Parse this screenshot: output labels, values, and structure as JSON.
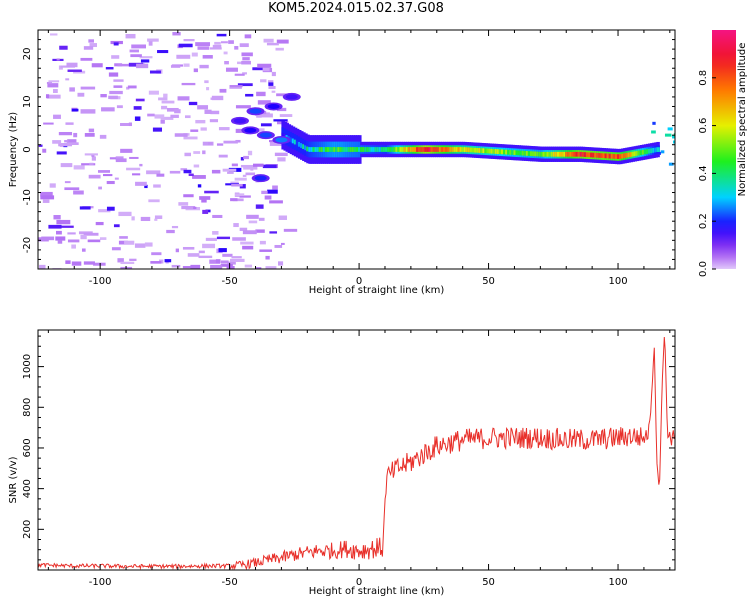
{
  "figure": {
    "title": "KOM5.2024.015.02.37.G08"
  },
  "chart_data": [
    {
      "type": "heatmap",
      "title": "KOM5.2024.015.02.37.G08",
      "xlabel": "Height of straight line (km)",
      "ylabel": "Frequency (Hz)",
      "xlim": [
        -124,
        122
      ],
      "ylim": [
        -25,
        25
      ],
      "xticks": [
        -100,
        -50,
        0,
        50,
        100
      ],
      "yticks": [
        -20,
        -10,
        0,
        10,
        20
      ],
      "colorbar": {
        "label": "Normalized spectral amplitude",
        "range": [
          0,
          1
        ],
        "ticks": [
          "0.0",
          "0.2",
          "0.4",
          "0.6",
          "0.8"
        ],
        "colormap": "rainbow (white to violet, blue, cyan, green, yellow, orange, red, magenta)"
      },
      "description_points": [
        {
          "x": -110,
          "y": 22,
          "value": 0.15
        },
        {
          "x": -95,
          "y": 16,
          "value": 0.15
        },
        {
          "x": -80,
          "y": 9,
          "value": 0.1
        },
        {
          "x": -60,
          "y": -3,
          "value": 0.1
        },
        {
          "x": -45,
          "y": 4,
          "value": 0.2
        },
        {
          "x": -40,
          "y": 7,
          "value": 0.25
        },
        {
          "x": -38,
          "y": -6,
          "value": 0.2
        },
        {
          "x": -30,
          "y": 3,
          "value": 0.2
        },
        {
          "x": -20,
          "y": 0,
          "value": 0.35
        },
        {
          "x": -10,
          "y": 0,
          "value": 0.45
        },
        {
          "x": 0,
          "y": 0,
          "value": 0.4
        },
        {
          "x": 10,
          "y": 0,
          "value": 0.35
        },
        {
          "x": 25,
          "y": 0,
          "value": 0.9
        },
        {
          "x": 40,
          "y": 0,
          "value": 0.6
        },
        {
          "x": 55,
          "y": -0.5,
          "value": 0.5
        },
        {
          "x": 70,
          "y": -1,
          "value": 0.45
        },
        {
          "x": 85,
          "y": -1,
          "value": 0.85
        },
        {
          "x": 100,
          "y": -1.5,
          "value": 0.8
        },
        {
          "x": 115,
          "y": 0,
          "value": 0.3
        }
      ]
    },
    {
      "type": "line",
      "xlabel": "Height of straight line (km)",
      "ylabel": "SNR (v/v)",
      "xlim": [
        -124,
        122
      ],
      "ylim": [
        0,
        1180
      ],
      "xticks": [
        -100,
        -50,
        0,
        50,
        100
      ],
      "yticks": [
        200,
        400,
        600,
        800,
        1000
      ],
      "color": "#e8302a",
      "series": [
        {
          "x": [
            -124,
            -110,
            -100,
            -90,
            -80,
            -70,
            -60,
            -50,
            -45,
            -40,
            -35,
            -30,
            -25,
            -20,
            -15,
            -10,
            -5,
            0,
            5,
            9,
            10,
            10.5,
            12,
            15,
            20,
            25,
            30,
            40,
            50,
            60,
            70,
            80,
            90,
            100,
            105,
            110,
            112,
            114,
            115,
            116,
            117,
            118,
            119,
            120,
            122
          ],
          "y": [
            25,
            20,
            20,
            18,
            18,
            18,
            20,
            20,
            25,
            35,
            50,
            60,
            75,
            85,
            95,
            95,
            105,
            95,
            105,
            110,
            300,
            450,
            470,
            500,
            530,
            570,
            610,
            640,
            650,
            650,
            650,
            640,
            640,
            650,
            660,
            650,
            680,
            1100,
            520,
            400,
            900,
            1180,
            700,
            650,
            650
          ]
        }
      ]
    }
  ]
}
